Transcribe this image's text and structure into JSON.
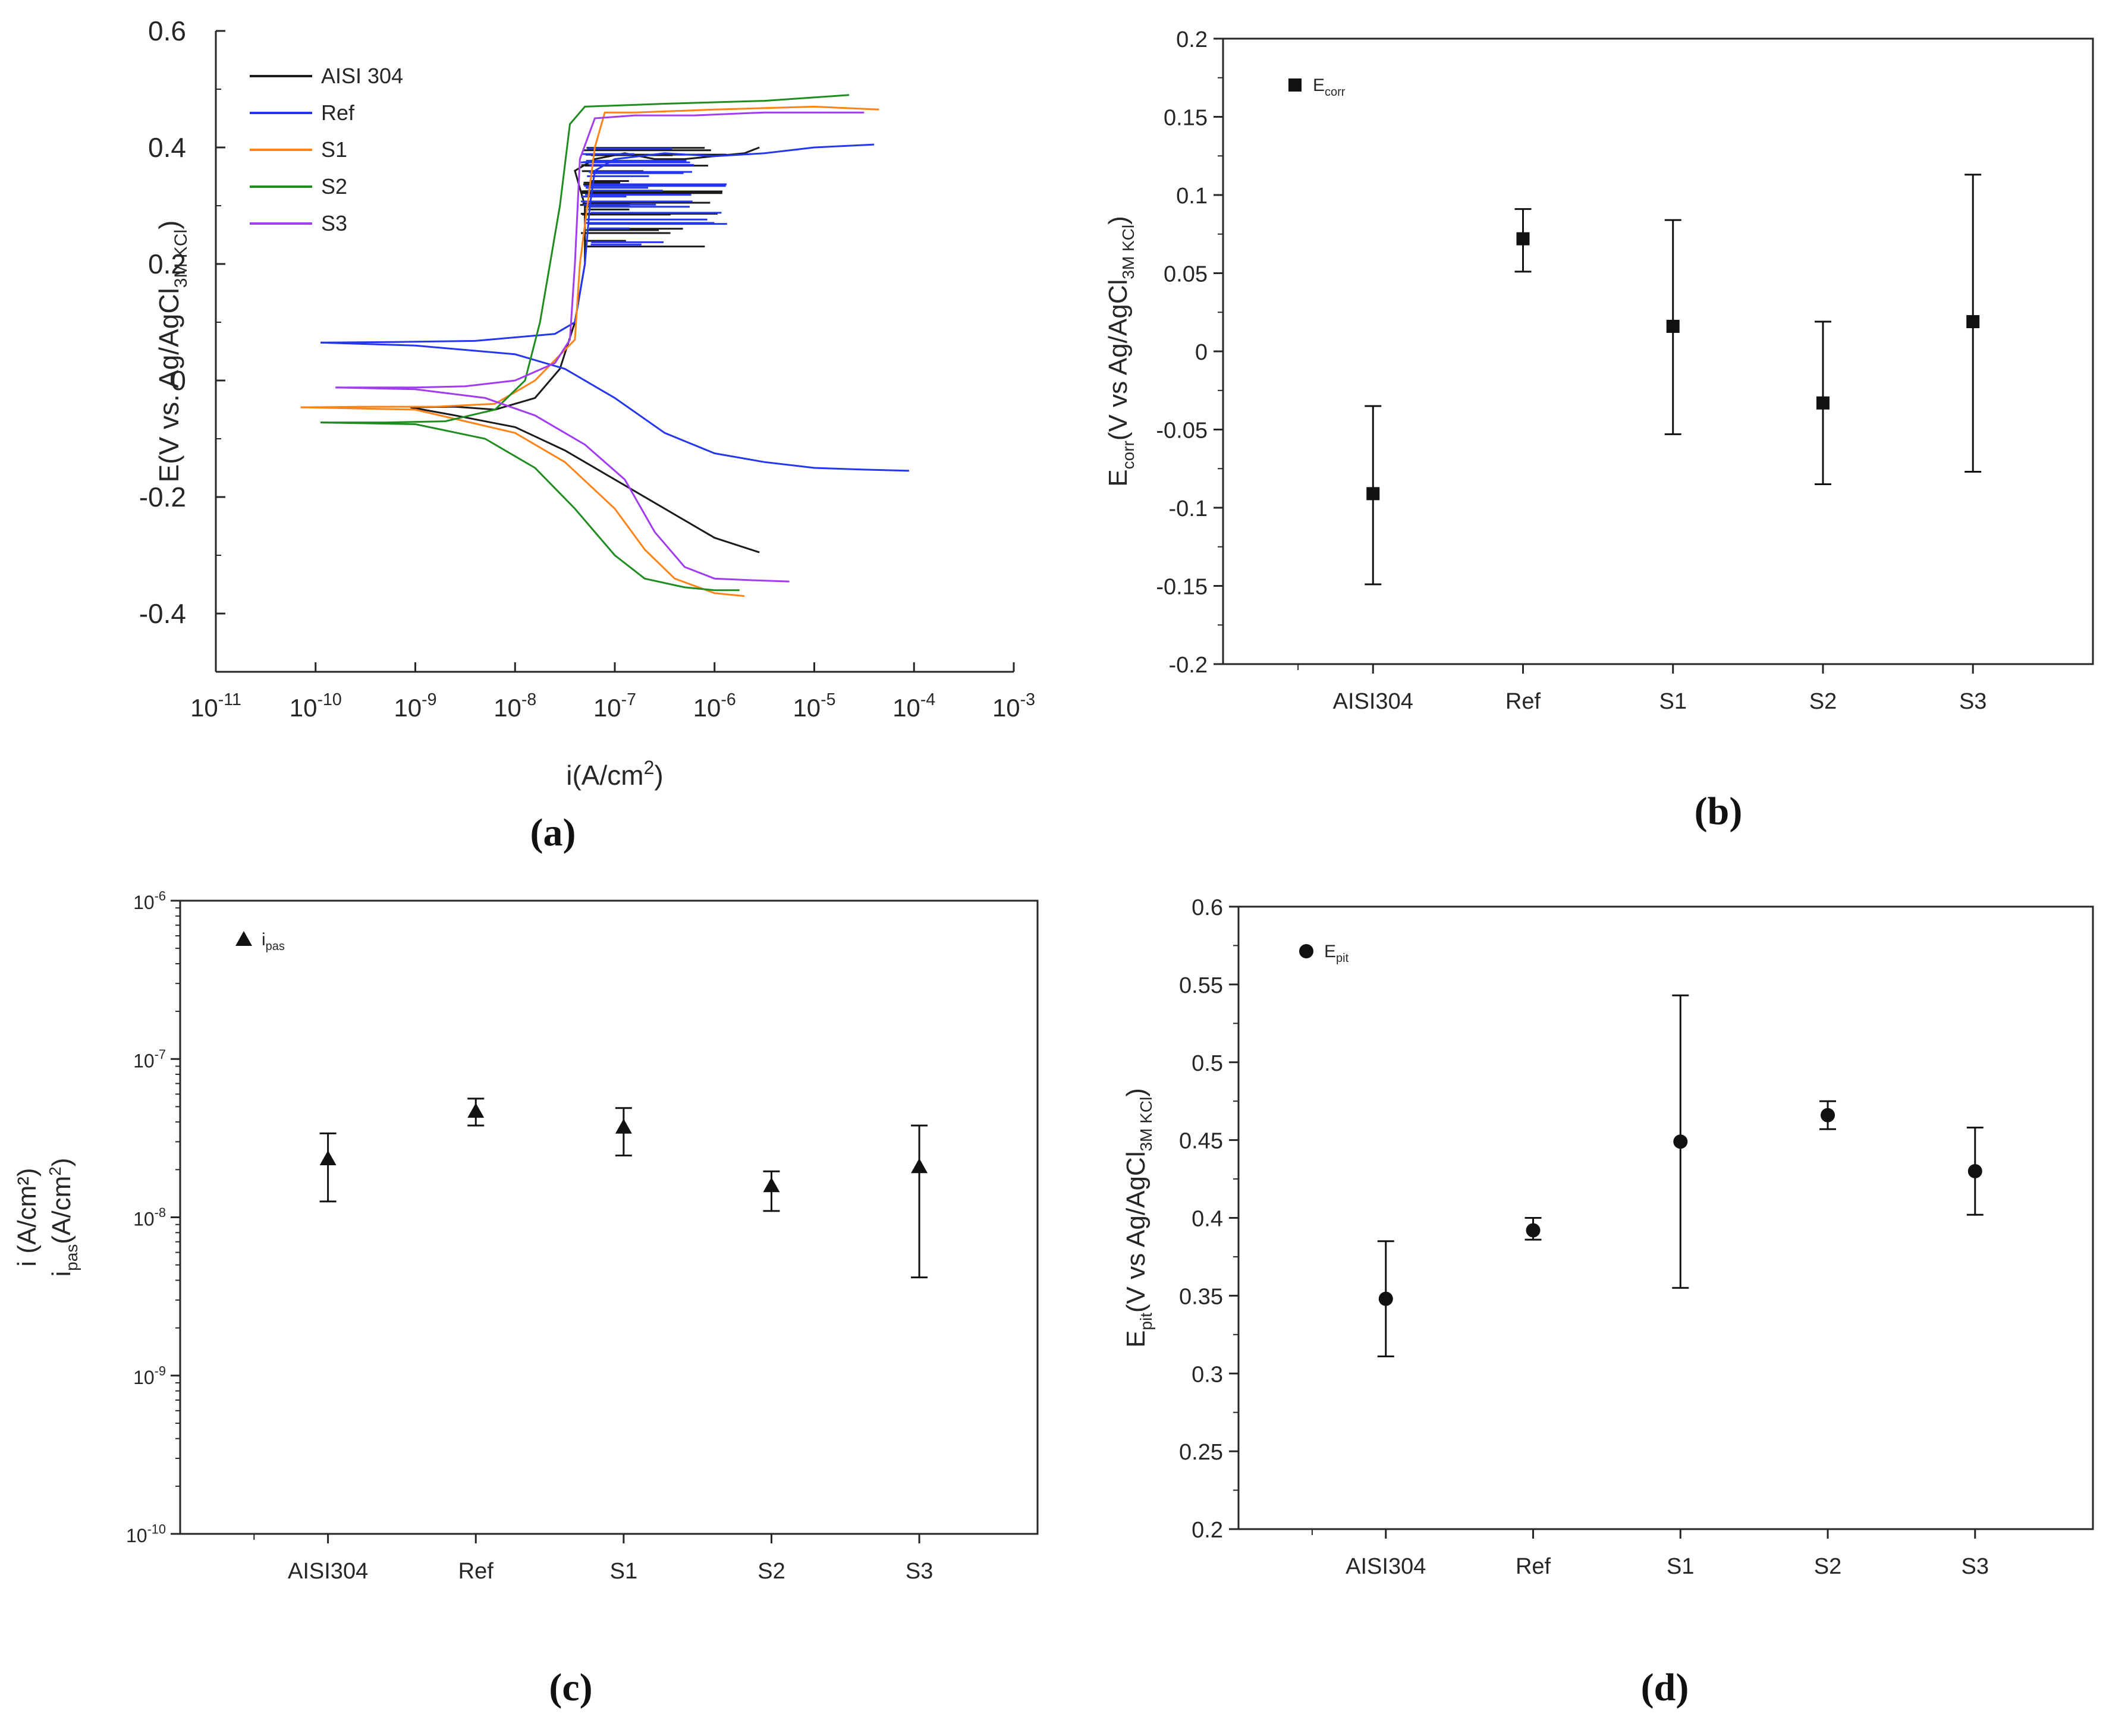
{
  "figure": {
    "panel_labels": {
      "a": "(a)",
      "b": "(b)",
      "c": "(c)",
      "d": "(d)"
    }
  },
  "chart_data": [
    {
      "id": "a",
      "type": "line",
      "title": "",
      "xlabel": "i(A/cm²)",
      "ylabel": "E(V vs. Ag/AgCl3M KCl)",
      "xscale": "log",
      "xlim_exp": [
        -11,
        -3
      ],
      "x_ticks_exp": [
        -11,
        -10,
        -9,
        -8,
        -7,
        -6,
        -5,
        -4,
        -3
      ],
      "ylim": [
        -0.5,
        0.6
      ],
      "y_ticks": [
        -0.4,
        -0.2,
        0,
        0.2,
        0.4,
        0.6
      ],
      "y_tick_labels": [
        "-0.4",
        "-0.2",
        "0",
        "0.2",
        "0.4",
        "0.6"
      ],
      "legend_position": "top-left",
      "series": [
        {
          "name": "AISI 304",
          "color": "#1a1a1a",
          "log_i": [
            -9.05,
            -8.6,
            -8.2,
            -7.8,
            -7.55,
            -7.4,
            -7.3,
            -7.3,
            -7.4,
            -7.2,
            -6.9,
            -6.6,
            -6.3,
            -5.7,
            -5.55
          ],
          "E": [
            -0.046,
            -0.045,
            -0.05,
            -0.03,
            0.02,
            0.1,
            0.2,
            0.3,
            0.36,
            0.38,
            0.39,
            0.38,
            0.38,
            0.39,
            0.4
          ],
          "cathodic": {
            "log_i": [
              -9.05,
              -8.6,
              -8.0,
              -7.5,
              -7.0,
              -6.5,
              -6.0,
              -5.55
            ],
            "E": [
              -0.046,
              -0.06,
              -0.08,
              -0.12,
              -0.17,
              -0.22,
              -0.27,
              -0.295
            ]
          }
        },
        {
          "name": "Ref",
          "color": "#2436ee",
          "log_i": [
            -9.95,
            -9.2,
            -8.4,
            -7.6,
            -7.4,
            -7.3,
            -7.25,
            -7.2,
            -7.0,
            -6.5,
            -6.0,
            -5.5,
            -5.0,
            -4.4
          ],
          "E": [
            0.065,
            0.066,
            0.068,
            0.08,
            0.1,
            0.2,
            0.3,
            0.36,
            0.38,
            0.39,
            0.385,
            0.39,
            0.4,
            0.405
          ],
          "cathodic": {
            "log_i": [
              -9.95,
              -9.0,
              -8.0,
              -7.5,
              -7.0,
              -6.5,
              -6.0,
              -5.5,
              -5.0,
              -4.5,
              -4.05
            ],
            "E": [
              0.065,
              0.06,
              0.045,
              0.02,
              -0.03,
              -0.09,
              -0.125,
              -0.14,
              -0.15,
              -0.153,
              -0.155
            ]
          }
        },
        {
          "name": "S1",
          "color": "#ff8316",
          "log_i": [
            -10.15,
            -9.5,
            -8.8,
            -8.2,
            -7.8,
            -7.4,
            -7.35,
            -7.2,
            -7.1,
            -6.8,
            -6.0,
            -5.0,
            -4.35
          ],
          "E": [
            -0.046,
            -0.045,
            -0.045,
            -0.04,
            0.0,
            0.07,
            0.2,
            0.4,
            0.46,
            0.46,
            0.465,
            0.47,
            0.465
          ],
          "cathodic": {
            "log_i": [
              -10.15,
              -9.0,
              -8.0,
              -7.5,
              -7.0,
              -6.7,
              -6.4,
              -6.0,
              -5.7
            ],
            "E": [
              -0.046,
              -0.05,
              -0.09,
              -0.14,
              -0.22,
              -0.29,
              -0.34,
              -0.365,
              -0.37
            ]
          }
        },
        {
          "name": "S2",
          "color": "#1f8c1f",
          "log_i": [
            -9.95,
            -9.3,
            -8.7,
            -8.2,
            -7.9,
            -7.75,
            -7.65,
            -7.55,
            -7.45,
            -7.3,
            -6.5,
            -5.5,
            -4.65
          ],
          "E": [
            -0.072,
            -0.072,
            -0.07,
            -0.05,
            0.0,
            0.1,
            0.2,
            0.3,
            0.44,
            0.47,
            0.475,
            0.48,
            0.49
          ],
          "cathodic": {
            "log_i": [
              -9.95,
              -9.0,
              -8.3,
              -7.8,
              -7.4,
              -7.0,
              -6.7,
              -6.3,
              -6.0,
              -5.75
            ],
            "E": [
              -0.072,
              -0.075,
              -0.1,
              -0.15,
              -0.22,
              -0.3,
              -0.34,
              -0.355,
              -0.36,
              -0.36
            ]
          }
        },
        {
          "name": "S3",
          "color": "#a13cf0",
          "log_i": [
            -9.8,
            -9.0,
            -8.5,
            -8.0,
            -7.6,
            -7.45,
            -7.4,
            -7.35,
            -7.2,
            -6.8,
            -6.2,
            -5.5,
            -4.5
          ],
          "E": [
            -0.012,
            -0.012,
            -0.01,
            0.0,
            0.03,
            0.07,
            0.2,
            0.38,
            0.45,
            0.455,
            0.455,
            0.46,
            0.46
          ],
          "cathodic": {
            "log_i": [
              -9.8,
              -9.0,
              -8.3,
              -7.8,
              -7.3,
              -6.9,
              -6.6,
              -6.3,
              -6.0,
              -5.6,
              -5.25
            ],
            "E": [
              -0.012,
              -0.015,
              -0.03,
              -0.06,
              -0.11,
              -0.17,
              -0.26,
              -0.32,
              -0.34,
              -0.343,
              -0.345
            ]
          }
        }
      ]
    },
    {
      "id": "b",
      "type": "scatter",
      "title": "",
      "xlabel": "",
      "ylabel": "Ecorr(V vs Ag/AgCl3M KCl)",
      "legend": "Ecorr",
      "marker": "square",
      "categories": [
        "AISI304",
        "Ref",
        "S1",
        "S2",
        "S3"
      ],
      "values": [
        -0.091,
        0.072,
        0.016,
        -0.033,
        0.019
      ],
      "err_low": [
        -0.149,
        0.051,
        -0.053,
        -0.085,
        -0.077
      ],
      "err_high": [
        -0.035,
        0.091,
        0.084,
        0.019,
        0.113
      ],
      "ylim": [
        -0.2,
        0.2
      ],
      "y_ticks": [
        -0.2,
        -0.15,
        -0.1,
        -0.05,
        0,
        0.05,
        0.1,
        0.15,
        0.2
      ],
      "y_tick_labels": [
        "-0.2",
        "-0.15",
        "-0.1",
        "-0.05",
        "0",
        "0.05",
        "0.1",
        "0.15",
        "0.2"
      ]
    },
    {
      "id": "c",
      "type": "scatter",
      "title": "",
      "xlabel": "",
      "ylabel": "ipas(A/cm²)",
      "ylabel_ghost": "i    (A/cm²)",
      "legend": "ipas",
      "marker": "triangle",
      "yscale": "log",
      "categories": [
        "AISI304",
        "Ref",
        "S1",
        "S2",
        "S3"
      ],
      "values_exp": [
        -7.63,
        -7.33,
        -7.43,
        -7.8,
        -7.68
      ],
      "err_low_exp": [
        -7.9,
        -7.42,
        -7.61,
        -7.96,
        -8.38
      ],
      "err_high_exp": [
        -7.47,
        -7.25,
        -7.31,
        -7.71,
        -7.42
      ],
      "ylim_exp": [
        -10,
        -6
      ],
      "y_ticks_exp": [
        -10,
        -9,
        -8,
        -7,
        -6
      ]
    },
    {
      "id": "d",
      "type": "scatter",
      "title": "",
      "xlabel": "",
      "ylabel": "Epit(V vs Ag/AgCl3M KCl)",
      "legend": "Epit",
      "marker": "circle",
      "categories": [
        "AISI304",
        "Ref",
        "S1",
        "S2",
        "S3"
      ],
      "values": [
        0.348,
        0.392,
        0.449,
        0.466,
        0.43
      ],
      "err_low": [
        0.311,
        0.386,
        0.355,
        0.457,
        0.402
      ],
      "err_high": [
        0.385,
        0.4,
        0.543,
        0.475,
        0.458
      ],
      "ylim": [
        0.2,
        0.6
      ],
      "y_ticks": [
        0.2,
        0.25,
        0.3,
        0.35,
        0.4,
        0.45,
        0.5,
        0.55,
        0.6
      ],
      "y_tick_labels": [
        "0.2",
        "0.25",
        "0.3",
        "0.35",
        "0.4",
        "0.45",
        "0.5",
        "0.55",
        "0.6"
      ]
    }
  ]
}
